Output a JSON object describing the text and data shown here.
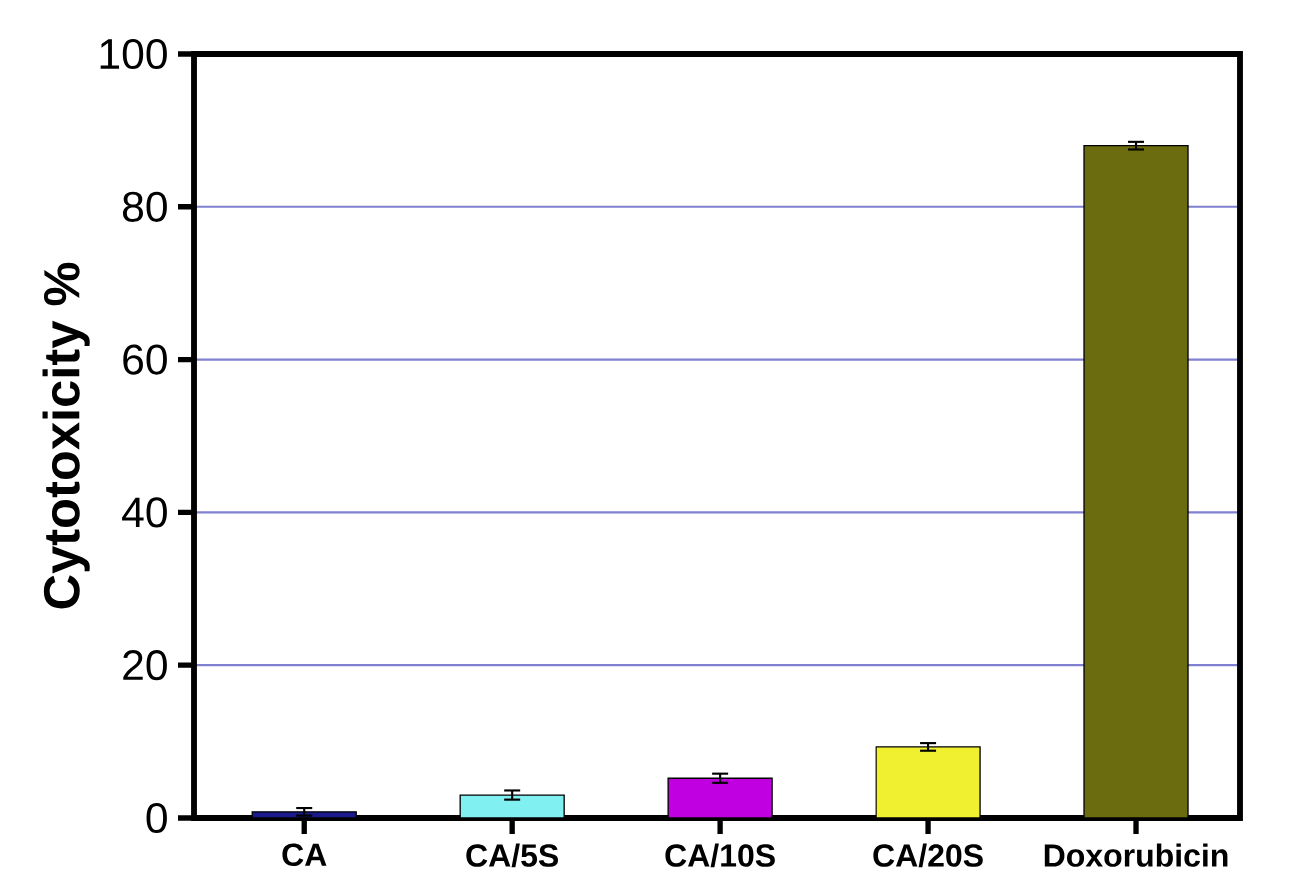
{
  "chart_data": {
    "type": "bar",
    "ylabel": "Cytotoxicity %",
    "categories": [
      "CA",
      "CA/5S",
      "CA/10S",
      "CA/20S",
      "Doxorubicin"
    ],
    "values": [
      0.8,
      3.0,
      5.2,
      9.3,
      88.0
    ],
    "errors": [
      0.5,
      0.6,
      0.6,
      0.5,
      0.5
    ],
    "colors": [
      "#1a1a8c",
      "#80f0f0",
      "#c000e0",
      "#f0f030",
      "#6b6b10"
    ],
    "ylim": [
      0,
      100
    ],
    "yticks": [
      0,
      20,
      40,
      60,
      80,
      100
    ],
    "grid": "y"
  }
}
